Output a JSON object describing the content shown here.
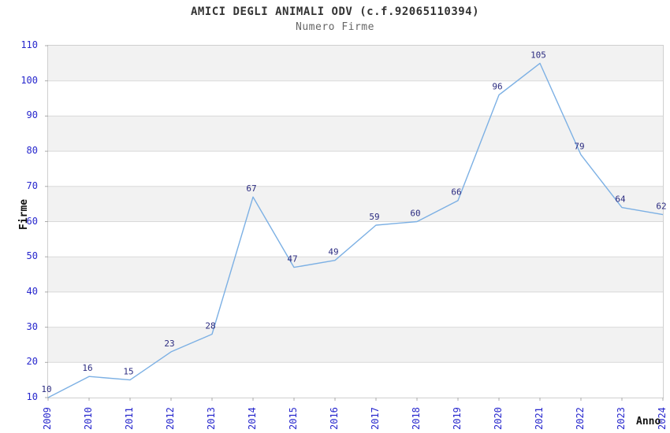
{
  "chart_data": {
    "type": "line",
    "title": "AMICI DEGLI ANIMALI ODV (c.f.92065110394)",
    "subtitle": "Numero Firme",
    "xlabel": "Anno",
    "ylabel": "Firme",
    "x": [
      "2009",
      "2010",
      "2011",
      "2012",
      "2013",
      "2014",
      "2015",
      "2016",
      "2017",
      "2018",
      "2019",
      "2020",
      "2021",
      "2022",
      "2023",
      "2024"
    ],
    "series": [
      {
        "name": "Numero Firme",
        "values": [
          10,
          16,
          15,
          23,
          28,
          67,
          47,
          49,
          59,
          60,
          66,
          96,
          105,
          79,
          64,
          62
        ]
      }
    ],
    "point_labels": true,
    "ylim": [
      10,
      110
    ],
    "ytick_step": 10,
    "yticks": [
      10,
      20,
      30,
      40,
      50,
      60,
      70,
      80,
      90,
      100,
      110
    ],
    "grid": true,
    "legend": "none",
    "colors": {
      "line": "#7cb0e4",
      "tick_label": "#2727cd",
      "point_label": "#2b2b80",
      "band": "#f2f2f2",
      "grid": "#d9d9d9",
      "border": "#cfcfcf",
      "axis_tick": "#aaaaaa",
      "title": "#333333",
      "subtitle": "#666666",
      "axis_title": "#111111"
    }
  }
}
